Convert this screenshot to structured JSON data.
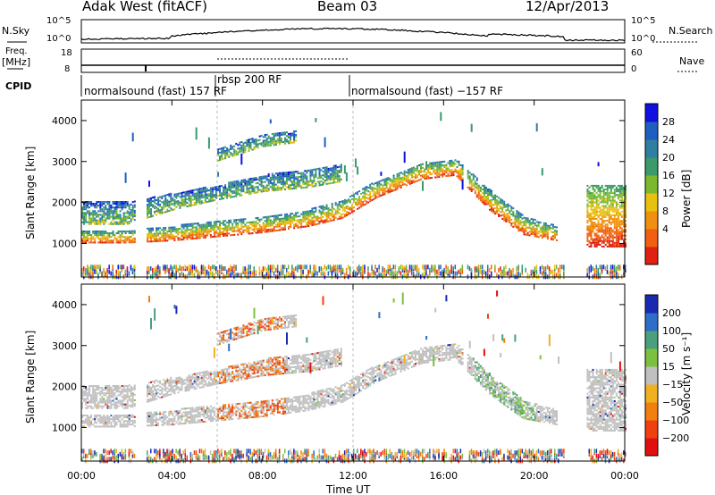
{
  "header": {
    "station": "Adak West (fitACF)",
    "beam": "Beam 03",
    "date": "12/Apr/2013"
  },
  "noise_panel": {
    "left_label": "N.Sky",
    "right_label": "N.Search",
    "left_ticks": [
      "10^5",
      "10^0"
    ],
    "right_ticks": [
      "10^5",
      "10^0"
    ]
  },
  "freq_panel": {
    "left_label_1": "Freq.",
    "left_label_2": "[MHz]",
    "left_ticks": [
      "18",
      "8"
    ],
    "right_label": "Nave",
    "right_ticks": [
      "60",
      "0"
    ]
  },
  "cpid": {
    "label": "CPID",
    "segments": [
      {
        "label": "normalsound (fast) 157 RF",
        "start_h": 0.0,
        "end_h": 6.0
      },
      {
        "label": "rbsp 200 RF",
        "start_h": 6.0,
        "end_h": 12.0
      },
      {
        "label": "normalsound (fast) −157 RF",
        "start_h": 12.0,
        "end_h": 24.0
      }
    ]
  },
  "axes": {
    "xlabel": "Time UT",
    "xticks": [
      "00:00",
      "04:00",
      "08:00",
      "12:00",
      "16:00",
      "20:00",
      "00:00"
    ],
    "ylabel": "Slant Range [km]",
    "yticks": [
      "1000",
      "2000",
      "3000",
      "4000"
    ]
  },
  "power_colorbar": {
    "label": "Power [dB]",
    "ticks": [
      "4",
      "8",
      "12",
      "16",
      "20",
      "24",
      "28"
    ],
    "colors": [
      "#1010e0",
      "#1f5fc0",
      "#2f7fa0",
      "#3a9a6a",
      "#7ab830",
      "#e8c010",
      "#f09010",
      "#f06010",
      "#e02010"
    ]
  },
  "velocity_colorbar": {
    "label": "Velocity [m s⁻¹]",
    "ticks": [
      "200",
      "100",
      "50",
      "15",
      "−15",
      "−50",
      "−100",
      "−200"
    ],
    "colors": [
      "#1a2ab0",
      "#2f6ec8",
      "#4aa07a",
      "#7cc040",
      "#c0c0c0",
      "#f0b020",
      "#f08010",
      "#f04010",
      "#e01010"
    ]
  },
  "chart_data": {
    "type": "heatmap",
    "x_range_h": [
      0,
      24
    ],
    "y_range_km": [
      180,
      4500
    ],
    "data_gaps_h": [
      [
        2.4,
        2.85
      ],
      [
        16.8,
        17.0
      ],
      [
        21.3,
        22.3
      ]
    ],
    "power_bands": [
      {
        "name": "primary",
        "points": [
          [
            0,
            1000,
            1300
          ],
          [
            2,
            1000,
            1300
          ],
          [
            4,
            1050,
            1400
          ],
          [
            6,
            1150,
            1550
          ],
          [
            8,
            1250,
            1650
          ],
          [
            10,
            1400,
            1800
          ],
          [
            11.5,
            1600,
            2050
          ],
          [
            13,
            2100,
            2500
          ],
          [
            15,
            2550,
            2950
          ],
          [
            16.5,
            2650,
            3050
          ],
          [
            18,
            1800,
            2300
          ],
          [
            19.5,
            1200,
            1650
          ],
          [
            21,
            1050,
            1400
          ]
        ]
      },
      {
        "name": "secondary",
        "points": [
          [
            0,
            1450,
            2000
          ],
          [
            2,
            1450,
            2000
          ],
          [
            4,
            1800,
            2200
          ],
          [
            6,
            2050,
            2400
          ],
          [
            8,
            2250,
            2650
          ],
          [
            10,
            2350,
            2800
          ],
          [
            11.5,
            2500,
            2950
          ]
        ]
      },
      {
        "name": "upper",
        "points": [
          [
            6,
            3000,
            3300
          ],
          [
            8,
            3350,
            3650
          ],
          [
            9.5,
            3450,
            3750
          ]
        ]
      },
      {
        "name": "late",
        "points": [
          [
            22.3,
            900,
            2400
          ],
          [
            24,
            900,
            2400
          ]
        ]
      }
    ]
  }
}
